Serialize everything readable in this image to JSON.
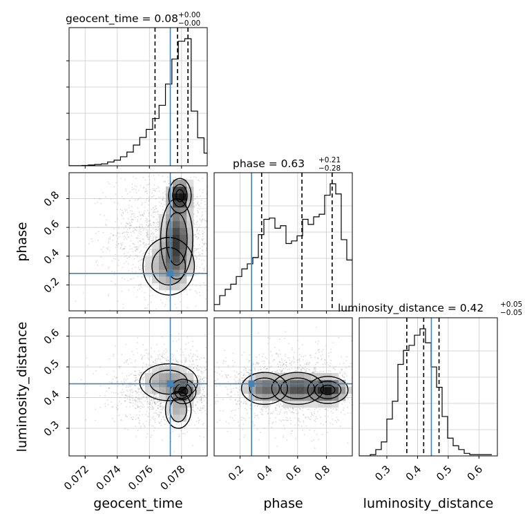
{
  "colors": {
    "truth": "#4682b4",
    "hist": "#000000",
    "grid": "#c8c8c8",
    "density": "#000000",
    "points": "#9a9a9a"
  },
  "chart_data": {
    "type": "corner",
    "parameters": [
      {
        "name": "geocent_time",
        "axis_label": "geocent_time",
        "range": [
          0.071,
          0.0796
        ],
        "ticks": [
          0.072,
          0.074,
          0.076,
          0.078
        ],
        "tick_labels": [
          "0.072",
          "0.074",
          "0.076",
          "0.078"
        ],
        "truth": 0.0773,
        "quantiles": [
          0.07635,
          0.07775,
          0.0784
        ],
        "title": {
          "main": "geocent_time = 0.08",
          "sup": "+0.00",
          "sub": "−0.00"
        },
        "hist_bin_width": 0.0004,
        "hist": [
          0.1,
          0.1,
          0.3,
          0.6,
          1.0,
          1.5,
          3.0,
          4.4,
          7.1,
          10.8,
          16.3,
          22.3,
          28.6,
          37.2,
          47.6,
          64.3,
          84.0,
          98.0,
          100.0,
          43.0,
          22.0,
          10.0
        ]
      },
      {
        "name": "phase",
        "axis_label": "phase",
        "range": [
          0.02,
          0.98
        ],
        "ticks": [
          0.2,
          0.4,
          0.6,
          0.8
        ],
        "tick_labels": [
          "0.2",
          "0.4",
          "0.6",
          "0.8"
        ],
        "truth": 0.28,
        "quantiles": [
          0.35,
          0.63,
          0.84
        ],
        "title": {
          "main": "phase = 0.63",
          "sup": "+0.21",
          "sub": "−0.28"
        },
        "hist_bin_width": 0.0384,
        "hist": [
          5,
          12,
          17,
          21,
          27,
          33,
          37,
          42,
          60,
          72,
          73,
          65,
          67,
          53,
          55,
          59,
          72,
          68,
          74,
          76,
          91,
          100,
          92,
          56,
          40
        ]
      },
      {
        "name": "luminosity_distance",
        "axis_label": "luminosity_distance",
        "range": [
          0.21,
          0.66
        ],
        "ticks": [
          0.3,
          0.4,
          0.5,
          0.6
        ],
        "tick_labels": [
          "0.3",
          "0.4",
          "0.5",
          "0.6"
        ],
        "truth": 0.445,
        "quantiles": [
          0.365,
          0.42,
          0.47
        ],
        "title": {
          "main": "luminosity_distance = 0.42",
          "sup": "+0.05",
          "sub": "−0.05"
        },
        "hist_bin_width": 0.018,
        "hist": [
          0,
          0,
          1,
          5,
          11,
          29,
          43,
          72,
          83,
          87,
          95,
          100,
          89,
          70,
          54,
          31,
          14,
          8,
          5,
          2,
          1,
          1,
          1,
          1
        ]
      }
    ],
    "pairs": [
      {
        "x": "geocent_time",
        "y": "phase",
        "blobs": [
          {
            "x": 0.0779,
            "y": 0.82,
            "sx": 0.00035,
            "sy": 0.06,
            "w": 1.0
          },
          {
            "x": 0.0777,
            "y": 0.52,
            "sx": 0.0005,
            "sy": 0.14,
            "w": 0.7
          },
          {
            "x": 0.0772,
            "y": 0.33,
            "sx": 0.0008,
            "sy": 0.1,
            "w": 0.3
          }
        ],
        "scatter": {
          "cx": 0.0772,
          "cy": 0.55,
          "sx": 0.0018,
          "sy": 0.22
        }
      },
      {
        "x": "geocent_time",
        "y": "luminosity_distance",
        "blobs": [
          {
            "x": 0.0781,
            "y": 0.42,
            "sx": 0.0004,
            "sy": 0.02,
            "w": 1.0
          },
          {
            "x": 0.0772,
            "y": 0.45,
            "sx": 0.0009,
            "sy": 0.03,
            "w": 0.45
          },
          {
            "x": 0.0778,
            "y": 0.36,
            "sx": 0.0004,
            "sy": 0.03,
            "w": 0.3
          }
        ],
        "scatter": {
          "cx": 0.0772,
          "cy": 0.43,
          "sx": 0.0017,
          "sy": 0.06
        }
      },
      {
        "x": "phase",
        "y": "luminosity_distance",
        "blobs": [
          {
            "x": 0.81,
            "y": 0.425,
            "sx": 0.07,
            "sy": 0.022,
            "w": 1.0
          },
          {
            "x": 0.6,
            "y": 0.43,
            "sx": 0.09,
            "sy": 0.026,
            "w": 0.75
          },
          {
            "x": 0.37,
            "y": 0.43,
            "sx": 0.08,
            "sy": 0.026,
            "w": 0.6
          }
        ],
        "scatter": {
          "cx": 0.55,
          "cy": 0.43,
          "sx": 0.25,
          "sy": 0.06
        }
      }
    ]
  }
}
